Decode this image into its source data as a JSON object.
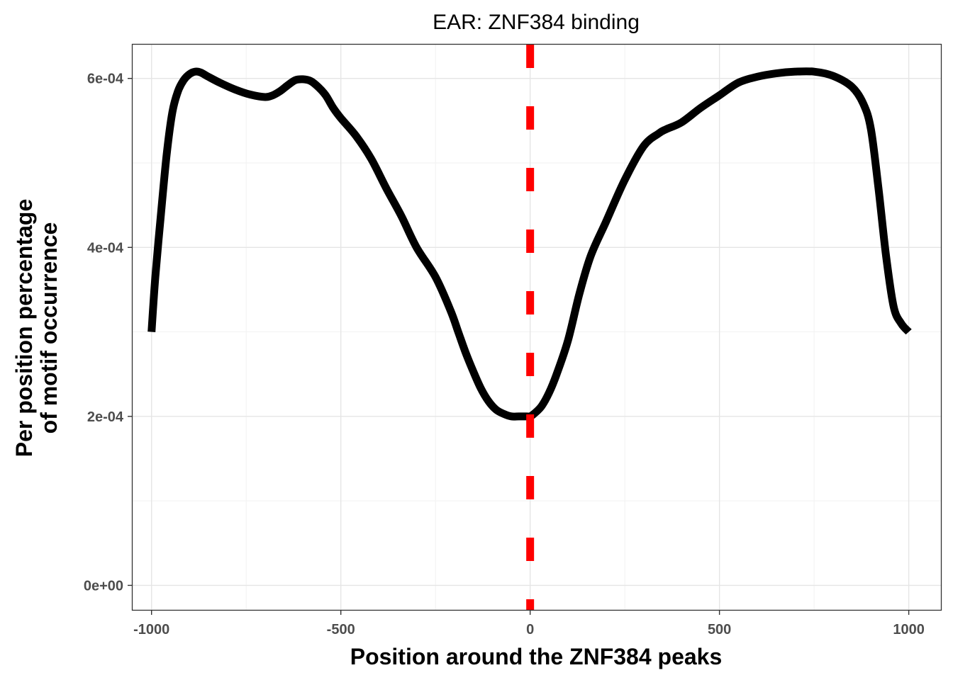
{
  "chart_data": {
    "type": "line",
    "title": "EAR: ZNF384 binding",
    "xlabel": "Position around the ZNF384 peaks",
    "ylabel_lines": [
      "Per position percentage",
      "of motif occurrence"
    ],
    "xlim": [
      -1050,
      1085
    ],
    "ylim": [
      -2.9e-05,
      0.00064
    ],
    "x_ticks": [
      -1000,
      -500,
      0,
      500,
      1000
    ],
    "x_tick_labels": [
      "-1000",
      "-500",
      "0",
      "500",
      "1000"
    ],
    "y_ticks": [
      0,
      0.0002,
      0.0004,
      0.0006
    ],
    "y_tick_labels": [
      "0e+00",
      "2e-04",
      "4e-04",
      "6e-04"
    ],
    "grid": true,
    "series": [
      {
        "color": "#000000",
        "x": [
          -1000,
          -990,
          -975,
          -960,
          -945,
          -930,
          -915,
          -900,
          -885,
          -870,
          -850,
          -820,
          -780,
          -740,
          -700,
          -680,
          -660,
          -640,
          -620,
          -600,
          -580,
          -560,
          -540,
          -520,
          -500,
          -460,
          -420,
          -380,
          -340,
          -300,
          -250,
          -210,
          -190,
          -170,
          -150,
          -130,
          -110,
          -90,
          -70,
          -50,
          -30,
          -10,
          0,
          10,
          30,
          50,
          70,
          100,
          130,
          160,
          200,
          250,
          300,
          340,
          360,
          400,
          450,
          500,
          550,
          600,
          650,
          700,
          750,
          800,
          850,
          880,
          900,
          920,
          940,
          960,
          980,
          1000
        ],
        "y": [
          0.0003,
          0.000365,
          0.00044,
          0.00051,
          0.00056,
          0.000585,
          0.000598,
          0.000605,
          0.000608,
          0.000607,
          0.000602,
          0.000595,
          0.000587,
          0.000581,
          0.000578,
          0.00058,
          0.000585,
          0.000592,
          0.000598,
          0.000599,
          0.000597,
          0.00059,
          0.00058,
          0.000565,
          0.000553,
          0.000532,
          0.000505,
          0.00047,
          0.000437,
          0.0004,
          0.000365,
          0.000325,
          0.0003,
          0.000275,
          0.000253,
          0.000233,
          0.000218,
          0.000208,
          0.000203,
          0.0002,
          0.0002,
          0.0002,
          0.0002,
          0.000203,
          0.000212,
          0.000228,
          0.00025,
          0.00029,
          0.000345,
          0.00039,
          0.00043,
          0.00048,
          0.00052,
          0.000535,
          0.00054,
          0.000548,
          0.000565,
          0.00058,
          0.000595,
          0.000602,
          0.000606,
          0.000608,
          0.000608,
          0.000603,
          0.00059,
          0.00057,
          0.00054,
          0.00047,
          0.00039,
          0.00033,
          0.00031,
          0.0003
        ]
      },
      {
        "type": "vline",
        "x": 0,
        "color": "#ff0000",
        "style": "dashed"
      }
    ]
  }
}
